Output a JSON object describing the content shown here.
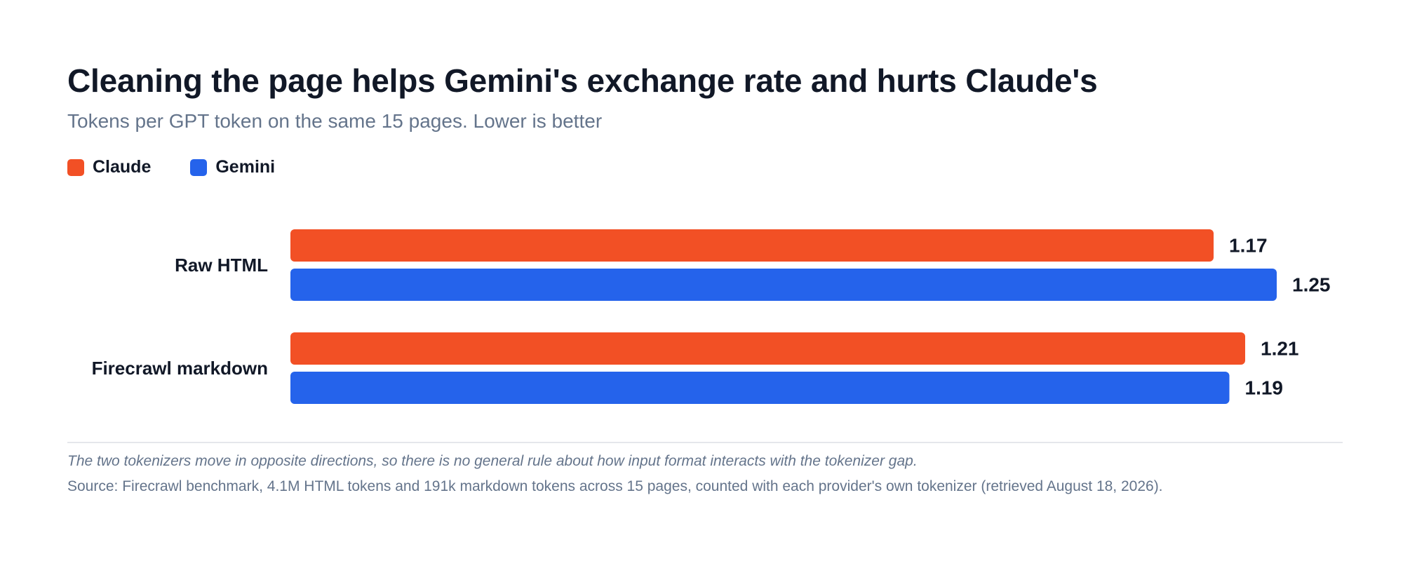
{
  "header": {
    "title": "Cleaning the page helps Gemini's exchange rate and hurts Claude's",
    "subtitle": "Tokens per GPT token on the same 15 pages. Lower is better"
  },
  "legend": [
    {
      "label": "Claude",
      "color": "#f25025"
    },
    {
      "label": "Gemini",
      "color": "#2563eb"
    }
  ],
  "chart_data": {
    "type": "bar",
    "orientation": "horizontal",
    "categories": [
      "Raw HTML",
      "Firecrawl markdown"
    ],
    "series": [
      {
        "name": "Claude",
        "color": "#f25025",
        "values": [
          1.17,
          1.21
        ],
        "labels": [
          "1.17",
          "1.21"
        ]
      },
      {
        "name": "Gemini",
        "color": "#2563eb",
        "values": [
          1.25,
          1.19
        ],
        "labels": [
          "1.25",
          "1.19"
        ]
      }
    ],
    "title": "Cleaning the page helps Gemini's exchange rate and hurts Claude's",
    "subtitle": "Tokens per GPT token on the same 15 pages. Lower is better",
    "xlim": [
      0,
      1.25
    ],
    "grid": false,
    "legend_position": "top-left"
  },
  "footer": {
    "note": "The two tokenizers move in opposite directions, so there is no general rule about how input format interacts with the tokenizer gap.",
    "source": "Source: Firecrawl benchmark, 4.1M HTML tokens and 191k markdown tokens across 15 pages, counted with each provider's own tokenizer (retrieved August 18, 2026)."
  }
}
